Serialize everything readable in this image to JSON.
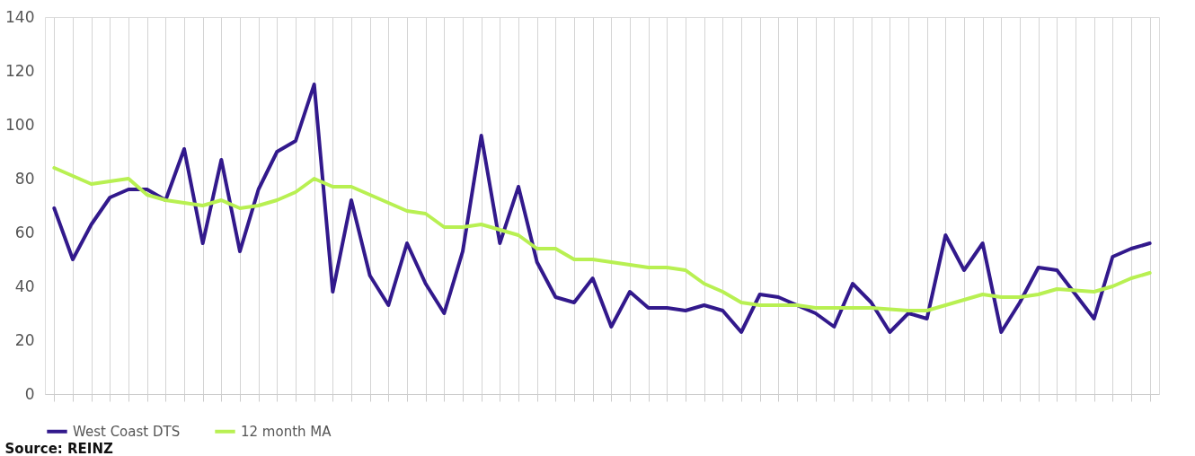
{
  "chart_data": {
    "type": "line",
    "categories": [
      null,
      null,
      null,
      null,
      null,
      null,
      null,
      null,
      null,
      null,
      null,
      null,
      null,
      null,
      null,
      null,
      null,
      null,
      null,
      null,
      null,
      null,
      null,
      null,
      null,
      null,
      null,
      null,
      null,
      null,
      null,
      null,
      null,
      null,
      null,
      null,
      null,
      null,
      null,
      null,
      null,
      null,
      null,
      null,
      null,
      null,
      null,
      null,
      null,
      null,
      null,
      null,
      null,
      null,
      null,
      null,
      null,
      null,
      null,
      null
    ],
    "series": [
      {
        "name": "West Coast DTS",
        "color": "#32198c",
        "values": [
          69,
          50,
          63,
          73,
          76,
          76,
          72,
          91,
          56,
          87,
          53,
          76,
          90,
          94,
          115,
          38,
          72,
          44,
          33,
          56,
          41,
          30,
          53,
          96,
          56,
          77,
          49,
          36,
          34,
          43,
          25,
          38,
          32,
          32,
          31,
          33,
          31,
          23,
          37,
          36,
          33,
          30,
          25,
          41,
          34,
          23,
          30,
          28,
          59,
          46,
          56,
          23,
          34,
          47,
          46,
          37,
          28,
          51,
          54,
          56
        ]
      },
      {
        "name": "12 month MA",
        "color": "#b8f052",
        "values": [
          84,
          81,
          78,
          79,
          80,
          74,
          72,
          71,
          70,
          72,
          69,
          70,
          72,
          75,
          80,
          77,
          77,
          74,
          71,
          68,
          67,
          62,
          62,
          63,
          61,
          59,
          54,
          54,
          50,
          50,
          49,
          48,
          47,
          47,
          46,
          41,
          38,
          34,
          33,
          33,
          33,
          32,
          32,
          32,
          32,
          31.5,
          31,
          31,
          33,
          35,
          37,
          36,
          36,
          37,
          39,
          38.5,
          38,
          40,
          43,
          45
        ]
      }
    ],
    "ylim": [
      0,
      140
    ],
    "yticks": [
      0,
      20,
      40,
      60,
      80,
      100,
      120,
      140
    ],
    "grid": "x",
    "legend": "bottom",
    "line_style": "solid",
    "marker": "none",
    "annotations": [
      "Source: REINZ"
    ]
  }
}
